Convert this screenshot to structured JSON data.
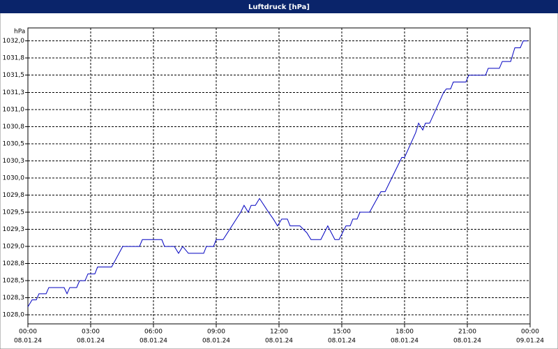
{
  "chart_data": {
    "type": "line",
    "title": "Luftdruck [hPa]",
    "y_label": "hPa",
    "xlim": [
      0,
      24
    ],
    "ylim": [
      1027.87,
      1032.19
    ],
    "grid": true,
    "xticks": [
      {
        "value": 0,
        "label": [
          "00:00",
          "08.01.24"
        ]
      },
      {
        "value": 3,
        "label": [
          "03:00",
          "08.01.24"
        ]
      },
      {
        "value": 6,
        "label": [
          "06:00",
          "08.01.24"
        ]
      },
      {
        "value": 9,
        "label": [
          "09:00",
          "08.01.24"
        ]
      },
      {
        "value": 12,
        "label": [
          "12:00",
          "08.01.24"
        ]
      },
      {
        "value": 15,
        "label": [
          "15:00",
          "08.01.24"
        ]
      },
      {
        "value": 18,
        "label": [
          "18:00",
          "08.01.24"
        ]
      },
      {
        "value": 21,
        "label": [
          "21:00",
          "08.01.24"
        ]
      },
      {
        "value": 24,
        "label": [
          "00:00",
          "09.01.24"
        ]
      }
    ],
    "yticks": [
      {
        "value": 1028.0,
        "label": "1028,0"
      },
      {
        "value": 1028.25,
        "label": "1028,3"
      },
      {
        "value": 1028.5,
        "label": "1028,5"
      },
      {
        "value": 1028.75,
        "label": "1028,8"
      },
      {
        "value": 1029.0,
        "label": "1029,0"
      },
      {
        "value": 1029.25,
        "label": "1029,3"
      },
      {
        "value": 1029.5,
        "label": "1029,5"
      },
      {
        "value": 1029.75,
        "label": "1029,8"
      },
      {
        "value": 1030.0,
        "label": "1030,0"
      },
      {
        "value": 1030.25,
        "label": "1030,3"
      },
      {
        "value": 1030.5,
        "label": "1030,5"
      },
      {
        "value": 1030.75,
        "label": "1030,8"
      },
      {
        "value": 1031.0,
        "label": "1031,0"
      },
      {
        "value": 1031.25,
        "label": "1031,3"
      },
      {
        "value": 1031.5,
        "label": "1031,5"
      },
      {
        "value": 1031.75,
        "label": "1031,8"
      },
      {
        "value": 1032.0,
        "label": "1032,0"
      }
    ],
    "x": [
      0,
      0.2,
      0.4,
      0.53,
      0.87,
      1.0,
      1.73,
      1.87,
      2.0,
      2.33,
      2.47,
      2.73,
      2.87,
      3.2,
      3.33,
      4.0,
      4.53,
      5.33,
      5.47,
      6.4,
      6.53,
      7.0,
      7.2,
      7.4,
      7.67,
      8.4,
      8.53,
      8.87,
      9.0,
      9.33,
      10.17,
      10.33,
      10.53,
      10.67,
      10.87,
      11.07,
      11.5,
      11.73,
      11.93,
      12.13,
      12.4,
      12.53,
      13.0,
      13.33,
      13.53,
      14.0,
      14.33,
      14.67,
      14.87,
      15.2,
      15.4,
      15.53,
      15.73,
      15.87,
      16.33,
      16.87,
      17.07,
      17.87,
      18.0,
      18.53,
      18.67,
      18.87,
      19.0,
      19.2,
      19.87,
      20.0,
      20.2,
      20.33,
      20.93,
      21.07,
      21.87,
      22.0,
      22.53,
      22.67,
      23.07,
      23.27,
      23.53,
      23.67,
      23.87
    ],
    "series": [
      {
        "color": "#0000c0",
        "values": [
          1028.12,
          1028.22,
          1028.22,
          1028.31,
          1028.31,
          1028.4,
          1028.4,
          1028.31,
          1028.4,
          1028.4,
          1028.5,
          1028.5,
          1028.6,
          1028.6,
          1028.7,
          1028.7,
          1029.0,
          1029.0,
          1029.1,
          1029.1,
          1029.0,
          1029.0,
          1028.9,
          1029.0,
          1028.9,
          1028.9,
          1029.0,
          1029.0,
          1029.1,
          1029.1,
          1029.5,
          1029.6,
          1029.5,
          1029.6,
          1029.6,
          1029.7,
          1029.5,
          1029.4,
          1029.3,
          1029.4,
          1029.4,
          1029.3,
          1029.3,
          1029.2,
          1029.1,
          1029.1,
          1029.3,
          1029.1,
          1029.1,
          1029.3,
          1029.3,
          1029.4,
          1029.4,
          1029.5,
          1029.5,
          1029.8,
          1029.8,
          1030.3,
          1030.3,
          1030.66,
          1030.8,
          1030.7,
          1030.8,
          1030.8,
          1031.25,
          1031.3,
          1031.3,
          1031.4,
          1031.4,
          1031.5,
          1031.5,
          1031.6,
          1031.6,
          1031.7,
          1031.7,
          1031.9,
          1031.9,
          1032.0,
          1032.0
        ]
      }
    ]
  }
}
